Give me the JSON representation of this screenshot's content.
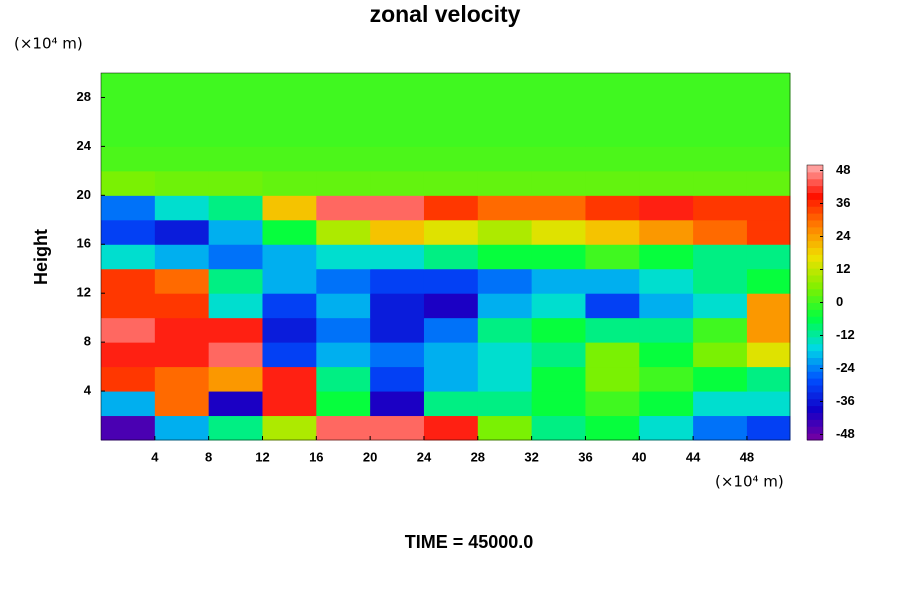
{
  "chart_data": {
    "type": "heatmap",
    "title": "zonal velocity",
    "ylabel": "Height",
    "x_unit": "(×10⁴ m)",
    "y_unit": "(×10⁴ m)",
    "footer": "TIME = 45000.0",
    "xlim": [
      0,
      51.2
    ],
    "ylim": [
      0,
      30
    ],
    "xticks": [
      4,
      8,
      12,
      16,
      20,
      24,
      28,
      32,
      36,
      40,
      44,
      48
    ],
    "yticks": [
      4,
      8,
      12,
      16,
      20,
      24,
      28
    ],
    "clim": [
      -50,
      50
    ],
    "cticks": [
      -48,
      -36,
      -24,
      -12,
      0,
      12,
      24,
      36,
      48
    ],
    "colormap": [
      "#7a00a0",
      "#1000c8",
      "#0050ff",
      "#00d8e8",
      "#00ff40",
      "#80f000",
      "#f0e000",
      "#ff8000",
      "#ff1000",
      "#ffb0b0"
    ],
    "x": [
      2,
      6,
      10,
      14,
      18,
      22,
      26,
      30,
      34,
      38,
      42,
      46,
      50
    ],
    "y": [
      1,
      3,
      5,
      7,
      9,
      11,
      13,
      15,
      17,
      19,
      21,
      23,
      25,
      27,
      29
    ],
    "z": [
      [
        -45,
        -20,
        -10,
        10,
        45,
        45,
        40,
        5,
        -10,
        -5,
        -15,
        -25,
        -30
      ],
      [
        -20,
        30,
        -40,
        40,
        -5,
        -40,
        -10,
        -10,
        -5,
        0,
        -5,
        -15,
        -15
      ],
      [
        35,
        30,
        25,
        40,
        -10,
        -30,
        -20,
        -15,
        -5,
        5,
        0,
        -5,
        -10
      ],
      [
        40,
        40,
        45,
        -30,
        -20,
        -25,
        -20,
        -15,
        -10,
        5,
        -5,
        5,
        15
      ],
      [
        45,
        40,
        40,
        -35,
        -25,
        -35,
        -25,
        -10,
        -5,
        -10,
        -10,
        0,
        25
      ],
      [
        35,
        35,
        -15,
        -30,
        -20,
        -35,
        -40,
        -20,
        -15,
        -30,
        -20,
        -15,
        25
      ],
      [
        35,
        30,
        -10,
        -20,
        -25,
        -30,
        -30,
        -25,
        -20,
        -20,
        -15,
        -10,
        -5
      ],
      [
        -15,
        -20,
        -25,
        -20,
        -15,
        -15,
        -10,
        -5,
        -5,
        0,
        -5,
        -10,
        -10
      ],
      [
        -30,
        -35,
        -20,
        -5,
        10,
        20,
        15,
        10,
        15,
        20,
        25,
        30,
        35
      ],
      [
        -25,
        -15,
        -10,
        20,
        45,
        45,
        35,
        30,
        30,
        35,
        40,
        35,
        35
      ],
      [
        5,
        4,
        4,
        3,
        3,
        3,
        3,
        3,
        3,
        3,
        3,
        3,
        3
      ],
      [
        1,
        1,
        1,
        1,
        1,
        1,
        1,
        1,
        1,
        1,
        1,
        1,
        1
      ],
      [
        0,
        0,
        0,
        0,
        0,
        0,
        0,
        0,
        0,
        0,
        0,
        0,
        0
      ],
      [
        0,
        0,
        0,
        0,
        0,
        0,
        0,
        0,
        0,
        0,
        0,
        0,
        0
      ],
      [
        0,
        0,
        0,
        0,
        0,
        0,
        0,
        0,
        0,
        0,
        0,
        0,
        0
      ]
    ]
  }
}
